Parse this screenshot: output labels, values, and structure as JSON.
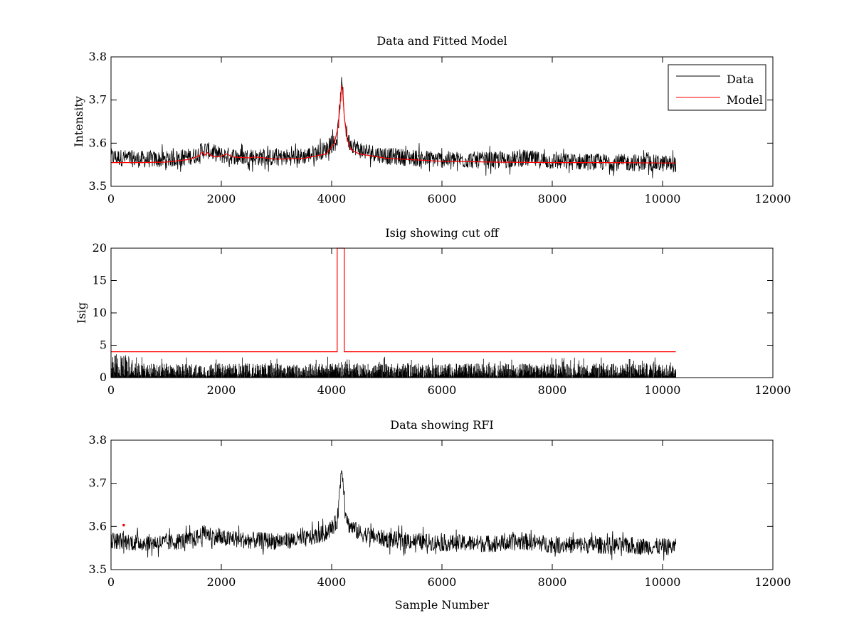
{
  "colors": {
    "data": "#000000",
    "model": "#ff0000",
    "axes": "#000000",
    "background": "#ffffff"
  },
  "chart_data": [
    {
      "type": "line",
      "title": "Data and Fitted Model",
      "xlabel": "",
      "ylabel": "Intensity",
      "xlim": [
        0,
        12000
      ],
      "ylim": [
        3.5,
        3.8
      ],
      "xticks": [
        0,
        2000,
        4000,
        6000,
        8000,
        10000,
        12000
      ],
      "yticks": [
        3.5,
        3.6,
        3.7,
        3.8
      ],
      "legend": {
        "placement": "top-right",
        "entries": [
          "Data",
          "Model"
        ]
      },
      "series": [
        {
          "name": "Data",
          "style": "noisy",
          "noise_amplitude": 0.02,
          "x": [
            0,
            500,
            1000,
            1500,
            1700,
            2000,
            2500,
            3000,
            3500,
            3900,
            4100,
            4180,
            4200,
            4250,
            4300,
            4500,
            5000,
            6000,
            7000,
            7500,
            8000,
            9000,
            10000,
            10240
          ],
          "y": [
            3.568,
            3.563,
            3.562,
            3.57,
            3.585,
            3.572,
            3.568,
            3.566,
            3.57,
            3.585,
            3.61,
            3.735,
            3.72,
            3.64,
            3.605,
            3.585,
            3.57,
            3.562,
            3.56,
            3.565,
            3.558,
            3.556,
            3.553,
            3.552
          ]
        },
        {
          "name": "Model",
          "style": "line",
          "x": [
            0,
            500,
            1000,
            1400,
            1600,
            1650,
            1700,
            1750,
            1800,
            1900,
            2000,
            2100,
            2200,
            2500,
            2600,
            3000,
            3500,
            3900,
            4050,
            4120,
            4160,
            4180,
            4200,
            4230,
            4280,
            4350,
            4500,
            5000,
            6000,
            7000,
            8000,
            9000,
            10000,
            10240
          ],
          "y": [
            3.555,
            3.555,
            3.556,
            3.562,
            3.57,
            3.58,
            3.572,
            3.578,
            3.572,
            3.568,
            3.57,
            3.575,
            3.568,
            3.566,
            3.568,
            3.563,
            3.565,
            3.575,
            3.6,
            3.64,
            3.7,
            3.735,
            3.72,
            3.66,
            3.61,
            3.585,
            3.575,
            3.565,
            3.558,
            3.556,
            3.555,
            3.555,
            3.554,
            3.554
          ]
        }
      ]
    },
    {
      "type": "line",
      "title": "Isig showing cut off",
      "xlabel": "",
      "ylabel": "Isig",
      "xlim": [
        0,
        12000
      ],
      "ylim": [
        0,
        20
      ],
      "xticks": [
        0,
        2000,
        4000,
        6000,
        8000,
        10000,
        12000
      ],
      "yticks": [
        0,
        5,
        10,
        15,
        20
      ],
      "series": [
        {
          "name": "Isig",
          "style": "noise_floor",
          "max_value": 4.0,
          "x": [
            0,
            10240
          ]
        },
        {
          "name": "Cut off",
          "style": "line",
          "x": [
            0,
            4100,
            4100,
            4230,
            4230,
            10240
          ],
          "y": [
            4,
            4,
            20,
            20,
            4,
            4
          ]
        }
      ]
    },
    {
      "type": "line",
      "title": "Data showing RFI",
      "xlabel": "Sample Number",
      "ylabel": "",
      "xlim": [
        0,
        12000
      ],
      "ylim": [
        3.5,
        3.8
      ],
      "xticks": [
        0,
        2000,
        4000,
        6000,
        8000,
        10000,
        12000
      ],
      "yticks": [
        3.5,
        3.6,
        3.7,
        3.8
      ],
      "series": [
        {
          "name": "Data",
          "style": "noisy",
          "noise_amplitude": 0.02,
          "x": [
            0,
            500,
            1000,
            1500,
            1700,
            2000,
            2500,
            3000,
            3500,
            3900,
            4100,
            4180,
            4200,
            4250,
            4300,
            4500,
            5000,
            6000,
            7000,
            7500,
            8000,
            9000,
            10000,
            10240
          ],
          "y": [
            3.568,
            3.563,
            3.562,
            3.57,
            3.585,
            3.572,
            3.568,
            3.566,
            3.57,
            3.585,
            3.61,
            3.735,
            3.72,
            3.64,
            3.605,
            3.585,
            3.57,
            3.562,
            3.56,
            3.565,
            3.558,
            3.556,
            3.553,
            3.552
          ]
        },
        {
          "name": "RFI",
          "style": "markers",
          "x": [
            230
          ],
          "y": [
            3.603
          ]
        }
      ]
    }
  ]
}
